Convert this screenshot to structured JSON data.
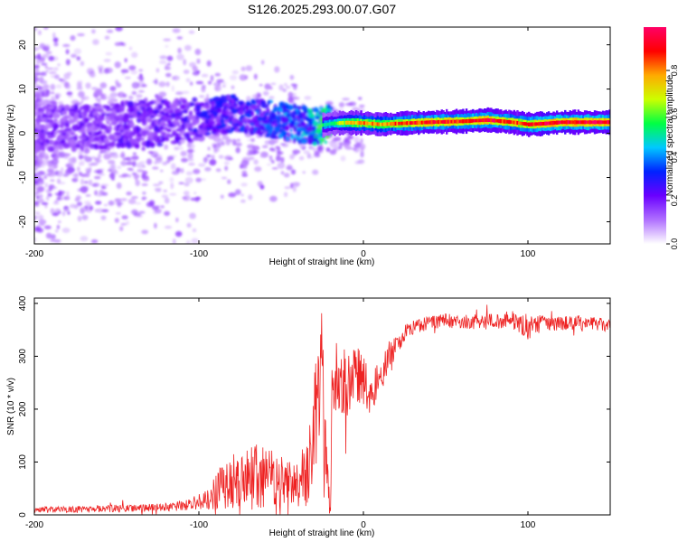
{
  "title": "S126.2025.293.00.07.G07",
  "colors": {
    "snr_line": "#ee2222",
    "frame": "#000000",
    "background": "#ffffff"
  },
  "chart_data": [
    {
      "type": "heatmap",
      "name": "spectrogram",
      "xlabel": "Height of straight line (km)",
      "ylabel": "Frequency (Hz)",
      "xlim": [
        -200,
        150
      ],
      "ylim": [
        -25,
        24
      ],
      "xticks": [
        -200,
        -100,
        0,
        100
      ],
      "xtick_labels": [
        "-200",
        "-100",
        "0",
        "100"
      ],
      "yticks": [
        -20,
        -10,
        0,
        10,
        20
      ],
      "ytick_labels": [
        "-20",
        "-10",
        "0",
        "10",
        "20"
      ],
      "ridge": {
        "x": [
          -200,
          -170,
          -140,
          -120,
          -100,
          -80,
          -60,
          -40,
          -30,
          -20,
          -10,
          0,
          10,
          20,
          40,
          60,
          75,
          90,
          100,
          110,
          120,
          150
        ],
        "freq": [
          1.0,
          1.5,
          2.0,
          2.5,
          3.0,
          4.5,
          3.5,
          2.0,
          1.5,
          2.2,
          2.4,
          2.3,
          2.0,
          2.2,
          2.5,
          2.7,
          3.0,
          2.5,
          2.0,
          2.2,
          2.5,
          2.5
        ],
        "amplitude": [
          0.2,
          0.2,
          0.22,
          0.22,
          0.25,
          0.3,
          0.35,
          0.4,
          0.45,
          0.55,
          0.7,
          0.8,
          0.75,
          0.85,
          0.9,
          0.9,
          0.95,
          0.85,
          0.9,
          0.95,
          0.95,
          0.95
        ]
      },
      "colorbar": {
        "label": "Normalized spectral amplitude",
        "range": [
          0.0,
          1.0
        ],
        "ticks": [
          0.0,
          0.2,
          0.4,
          0.6,
          0.8
        ],
        "tick_labels": [
          "0.0",
          "0.2",
          "0.4",
          "0.6",
          "0.8"
        ],
        "stops": [
          "#ffffff",
          "#b070ff",
          "#6a00ff",
          "#0022ff",
          "#00c8ff",
          "#00ff44",
          "#ccff00",
          "#ffaa00",
          "#ff0000",
          "#ff0066"
        ]
      }
    },
    {
      "type": "line",
      "name": "snr",
      "xlabel": "Height of straight line (km)",
      "ylabel": "SNR (10 * v/v)",
      "xlim": [
        -200,
        150
      ],
      "ylim": [
        0,
        410
      ],
      "xticks": [
        -200,
        -100,
        0,
        100
      ],
      "xtick_labels": [
        "-200",
        "-100",
        "0",
        "100"
      ],
      "yticks": [
        0,
        100,
        200,
        300,
        400
      ],
      "ytick_labels": [
        "0",
        "100",
        "200",
        "300",
        "400"
      ],
      "series": [
        {
          "name": "SNR",
          "color": "#ee2222",
          "x": [
            -200,
            -180,
            -160,
            -140,
            -120,
            -110,
            -100,
            -95,
            -90,
            -85,
            -80,
            -75,
            -70,
            -65,
            -60,
            -55,
            -50,
            -45,
            -40,
            -35,
            -30,
            -27,
            -25,
            -23,
            -21,
            -20,
            -19,
            -18,
            -15,
            -10,
            -5,
            0,
            5,
            10,
            15,
            20,
            25,
            30,
            35,
            40,
            50,
            60,
            70,
            80,
            90,
            100,
            110,
            120,
            130,
            150
          ],
          "values": [
            10,
            10,
            12,
            12,
            15,
            18,
            25,
            30,
            40,
            55,
            65,
            60,
            70,
            80,
            70,
            75,
            60,
            70,
            60,
            75,
            160,
            230,
            260,
            100,
            30,
            20,
            240,
            250,
            270,
            240,
            270,
            250,
            230,
            260,
            300,
            320,
            345,
            355,
            360,
            365,
            368,
            365,
            367,
            366,
            370,
            355,
            365,
            362,
            365,
            358
          ],
          "noise": [
            6,
            6,
            7,
            7,
            8,
            10,
            15,
            20,
            35,
            45,
            55,
            45,
            60,
            70,
            60,
            60,
            50,
            60,
            50,
            60,
            100,
            120,
            120,
            80,
            30,
            20,
            70,
            60,
            70,
            60,
            55,
            50,
            40,
            35,
            30,
            20,
            16,
            14,
            14,
            14,
            14,
            14,
            14,
            15,
            16,
            25,
            16,
            14,
            14,
            12
          ]
        }
      ]
    }
  ]
}
